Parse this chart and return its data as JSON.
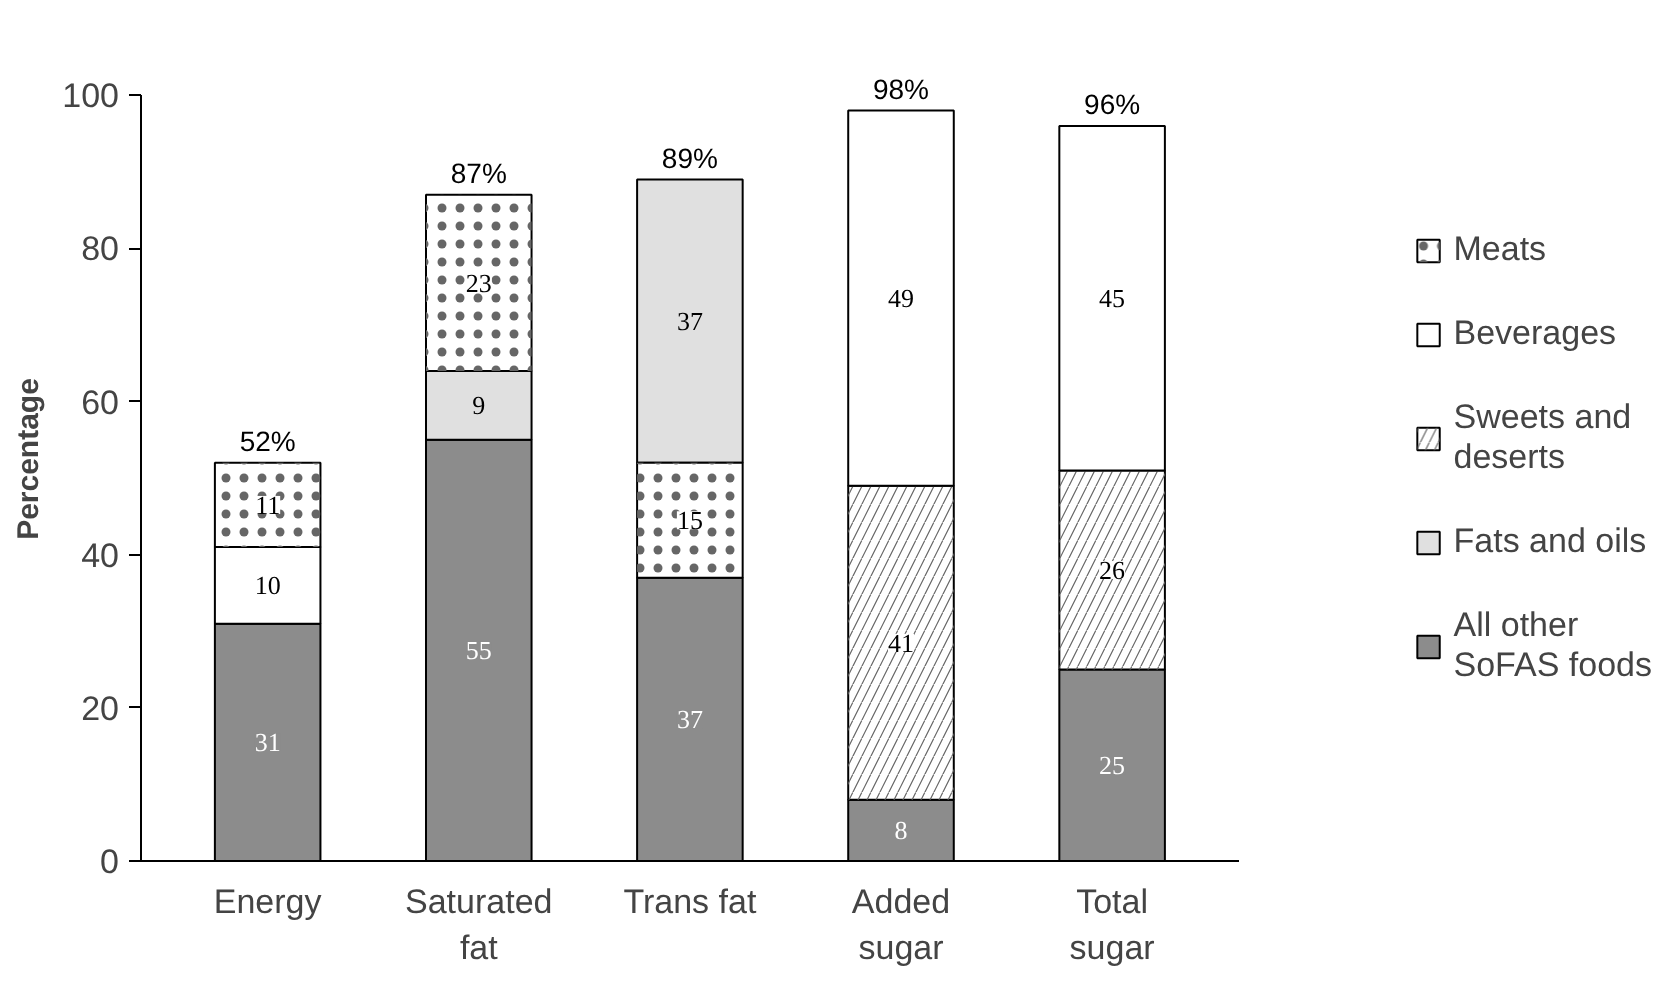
{
  "chart_data": {
    "type": "bar",
    "ylabel": "Percentage",
    "categories": [
      "Energy",
      "Saturated fat",
      "Trans fat",
      "Added sugar",
      "Total sugar"
    ],
    "series": [
      {
        "name": "All other SoFAS foods",
        "color": "#8c8c8c",
        "values": [
          31,
          55,
          37,
          8,
          25
        ],
        "base": [
          0,
          0,
          0,
          0,
          0
        ]
      },
      {
        "name": "Fats and oils",
        "color": "#e0e0e0",
        "values": [
          null,
          9,
          37,
          null,
          null
        ],
        "base": [
          null,
          55,
          52,
          null,
          null
        ]
      },
      {
        "name": "Sweets and deserts",
        "color": "#ffffff",
        "values": [
          null,
          null,
          null,
          41,
          26
        ],
        "base": [
          null,
          null,
          null,
          8,
          25
        ]
      },
      {
        "name": "Beverages",
        "color": "#ffffff",
        "values": [
          10,
          null,
          null,
          49,
          45
        ],
        "base": [
          31,
          null,
          null,
          49,
          51
        ]
      },
      {
        "name": "Meats",
        "color": "#ffffff",
        "values": [
          11,
          23,
          15,
          null,
          null
        ],
        "base": [
          41,
          64,
          37,
          null,
          null
        ]
      }
    ],
    "totals": [
      "52%",
      "87%",
      "89%",
      "98%",
      "96%"
    ],
    "data_labels": true,
    "ylim": [
      0,
      100
    ],
    "yticks": [
      0,
      20,
      40,
      60,
      80,
      100
    ],
    "grid": false,
    "legend": "right"
  }
}
